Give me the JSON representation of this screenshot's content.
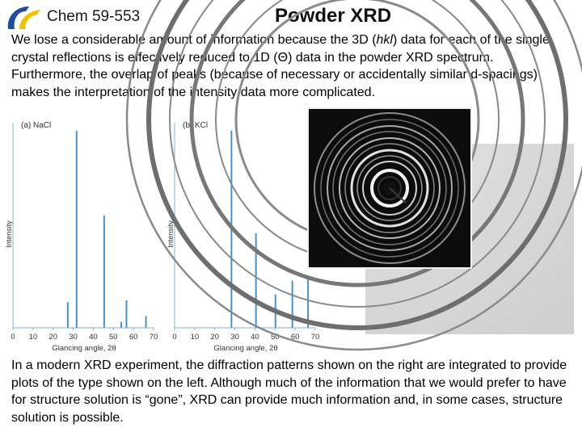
{
  "header": {
    "course": "Chem 59-553",
    "title": "Powder XRD",
    "logo_colors": {
      "blue": "#1f4e9c",
      "yellow": "#f2c200"
    }
  },
  "intro": {
    "t1": "We lose a considerable amount of information because the 3D (",
    "hkl": "hkl",
    "t2": ") data for each of the single crystal reflections is effectively reduced to 1D (",
    "theta": "Θ",
    "t3": ") data in the powder XRD spectrum.  Furthermore, the overlap of peaks (because of necessary or accidentally similar d-spacings) makes the interpretation of the intensity data more complicated."
  },
  "outro": "In a modern XRD experiment, the diffraction patterns shown on the right are integrated to provide plots of the type shown on the left.  Although much of the information that we would prefer to have for structure solution is “gone”, XRD can provide much information and, in some cases, structure solution is possible.",
  "chart_data": [
    {
      "type": "bar",
      "panel_label": "(a) NaCl",
      "xlabel": "Glancing angle, 2θ",
      "ylabel": "Intensity",
      "xlim": [
        0,
        70
      ],
      "ylim": [
        0,
        100
      ],
      "xticks": [
        0,
        10,
        20,
        30,
        40,
        50,
        60,
        70
      ],
      "peaks": [
        {
          "x": 27.3,
          "y": 13
        },
        {
          "x": 31.7,
          "y": 100
        },
        {
          "x": 45.4,
          "y": 57
        },
        {
          "x": 53.9,
          "y": 3
        },
        {
          "x": 56.5,
          "y": 14
        },
        {
          "x": 66.2,
          "y": 6
        }
      ]
    },
    {
      "type": "bar",
      "panel_label": "(b) KCl",
      "xlabel": "Glancing angle, 2θ",
      "ylabel": "Intensity",
      "xlim": [
        0,
        70
      ],
      "ylim": [
        0,
        100
      ],
      "xticks": [
        0,
        10,
        20,
        30,
        40,
        50,
        60,
        70
      ],
      "peaks": [
        {
          "x": 28.3,
          "y": 100
        },
        {
          "x": 40.5,
          "y": 48
        },
        {
          "x": 50.2,
          "y": 17
        },
        {
          "x": 58.6,
          "y": 24
        },
        {
          "x": 66.4,
          "y": 26
        }
      ]
    }
  ]
}
